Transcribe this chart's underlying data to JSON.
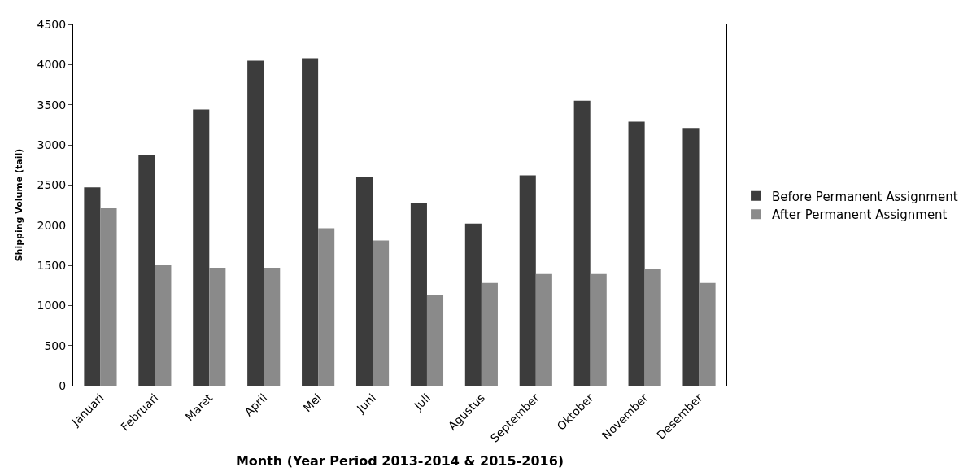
{
  "chart_data": {
    "type": "bar",
    "categories": [
      "Januari",
      "Februari",
      "Maret",
      "April",
      "Mei",
      "Juni",
      "Juli",
      "Agustus",
      "September",
      "Oktober",
      "November",
      "Desember"
    ],
    "series": [
      {
        "name": "Before Permanent Assignment",
        "color": "#3c3c3c",
        "values": [
          2470,
          2870,
          3440,
          4050,
          4080,
          2600,
          2270,
          2020,
          2620,
          3550,
          3290,
          3210
        ]
      },
      {
        "name": "After Permanent Assignment",
        "color": "#8a8a8a",
        "values": [
          2210,
          1500,
          1470,
          1470,
          1960,
          1810,
          1130,
          1280,
          1390,
          1390,
          1450,
          1280
        ]
      }
    ],
    "xlabel": "Month (Year Period 2013-2014 & 2015-2016)",
    "ylabel": "Shipping Volume (tail)",
    "ylim": [
      0,
      4500
    ],
    "yticks": [
      0,
      500,
      1000,
      1500,
      2000,
      2500,
      3000,
      3500,
      4000,
      4500
    ],
    "grid": false,
    "legend": "right"
  }
}
